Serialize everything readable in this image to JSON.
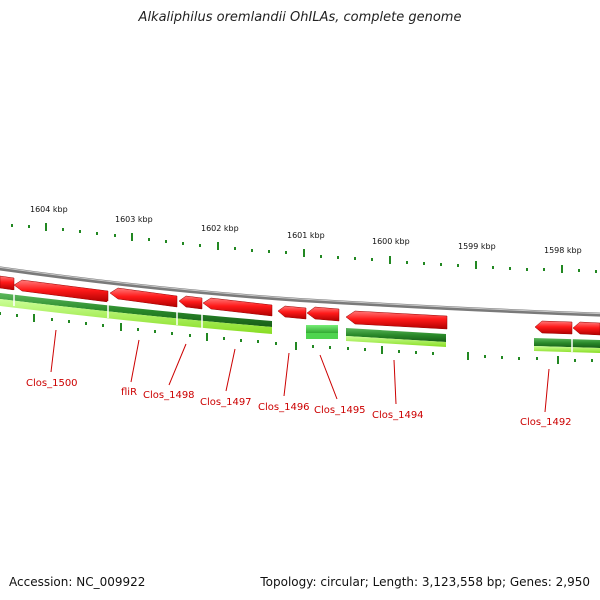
{
  "title": "Alkaliphilus oremlandii OhILAs, complete genome",
  "accession": "Accession: NC_009922",
  "summary": "Topology: circular; Length: 3,123,558 bp; Genes: 2,950",
  "colors": {
    "forward_strand": "#ee1111",
    "cds_strand": "#2a8a2a",
    "light_green": "#66dd33",
    "backbone": "#8a8a8a",
    "tick": "#228822",
    "label": "#cc0000"
  },
  "kbp_labels": [
    "1604 kbp",
    "1603 kbp",
    "1602 kbp",
    "1601 kbp",
    "1600 kbp",
    "1599 kbp",
    "1598 kbp"
  ],
  "gene_labels": [
    "Clos_1500",
    "fliR",
    "Clos_1498",
    "Clos_1497",
    "Clos_1496",
    "Clos_1495",
    "Clos_1494",
    "Clos_1492"
  ]
}
